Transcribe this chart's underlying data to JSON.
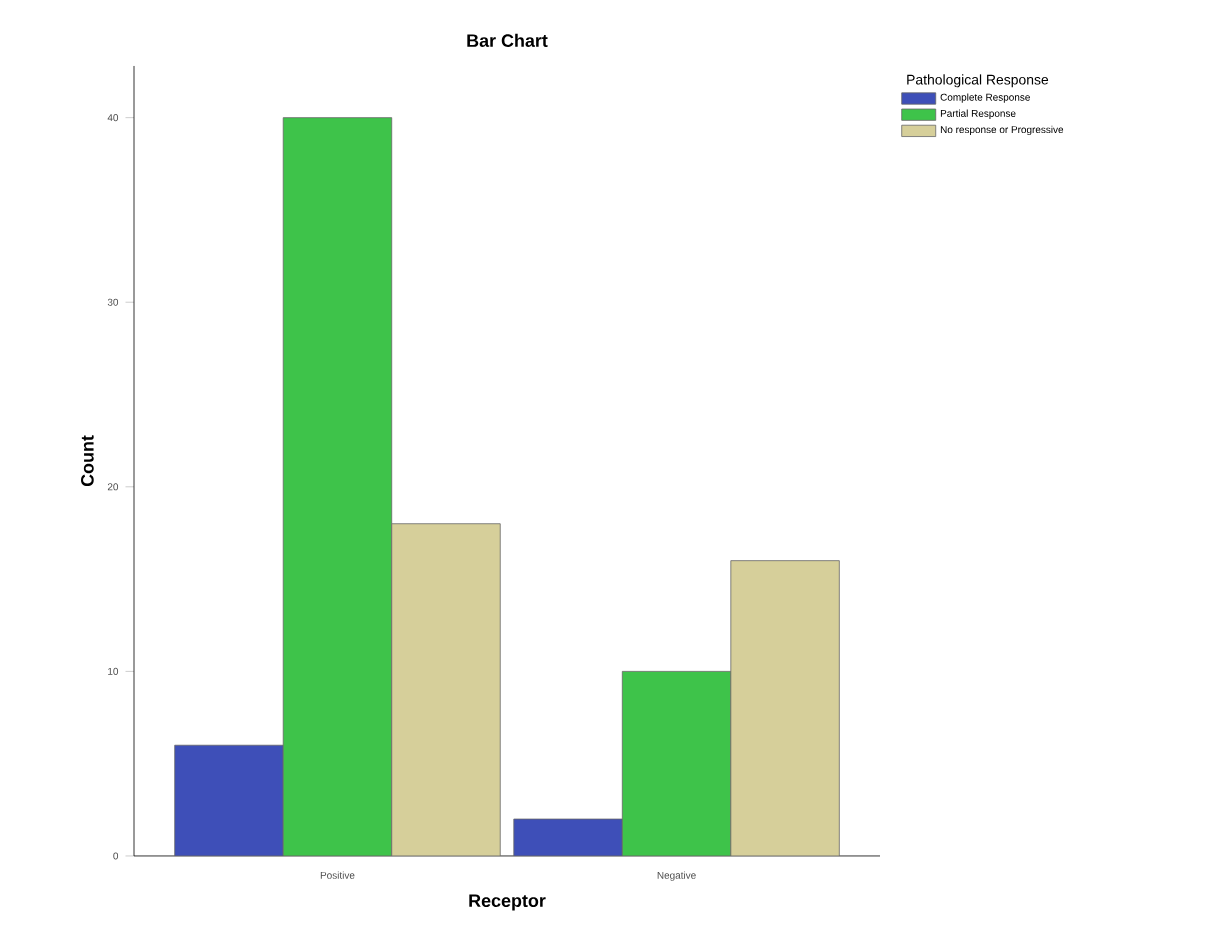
{
  "chart_data": {
    "type": "bar",
    "title": "Bar Chart",
    "xlabel": "Receptor",
    "ylabel": "Count",
    "legend_title": "Pathological Response",
    "categories": [
      "Positive",
      "Negative"
    ],
    "series": [
      {
        "name": "Complete Response",
        "color": "#3e4fb8",
        "values": [
          6,
          2
        ]
      },
      {
        "name": "Partial Response",
        "color": "#3ec34a",
        "values": [
          40,
          10
        ]
      },
      {
        "name": "No response or Progressive",
        "color": "#d6cf9a",
        "values": [
          18,
          16
        ]
      }
    ],
    "ylim": [
      0,
      42.8
    ],
    "yticks": [
      0,
      10,
      20,
      30,
      40
    ],
    "legend": "right"
  }
}
